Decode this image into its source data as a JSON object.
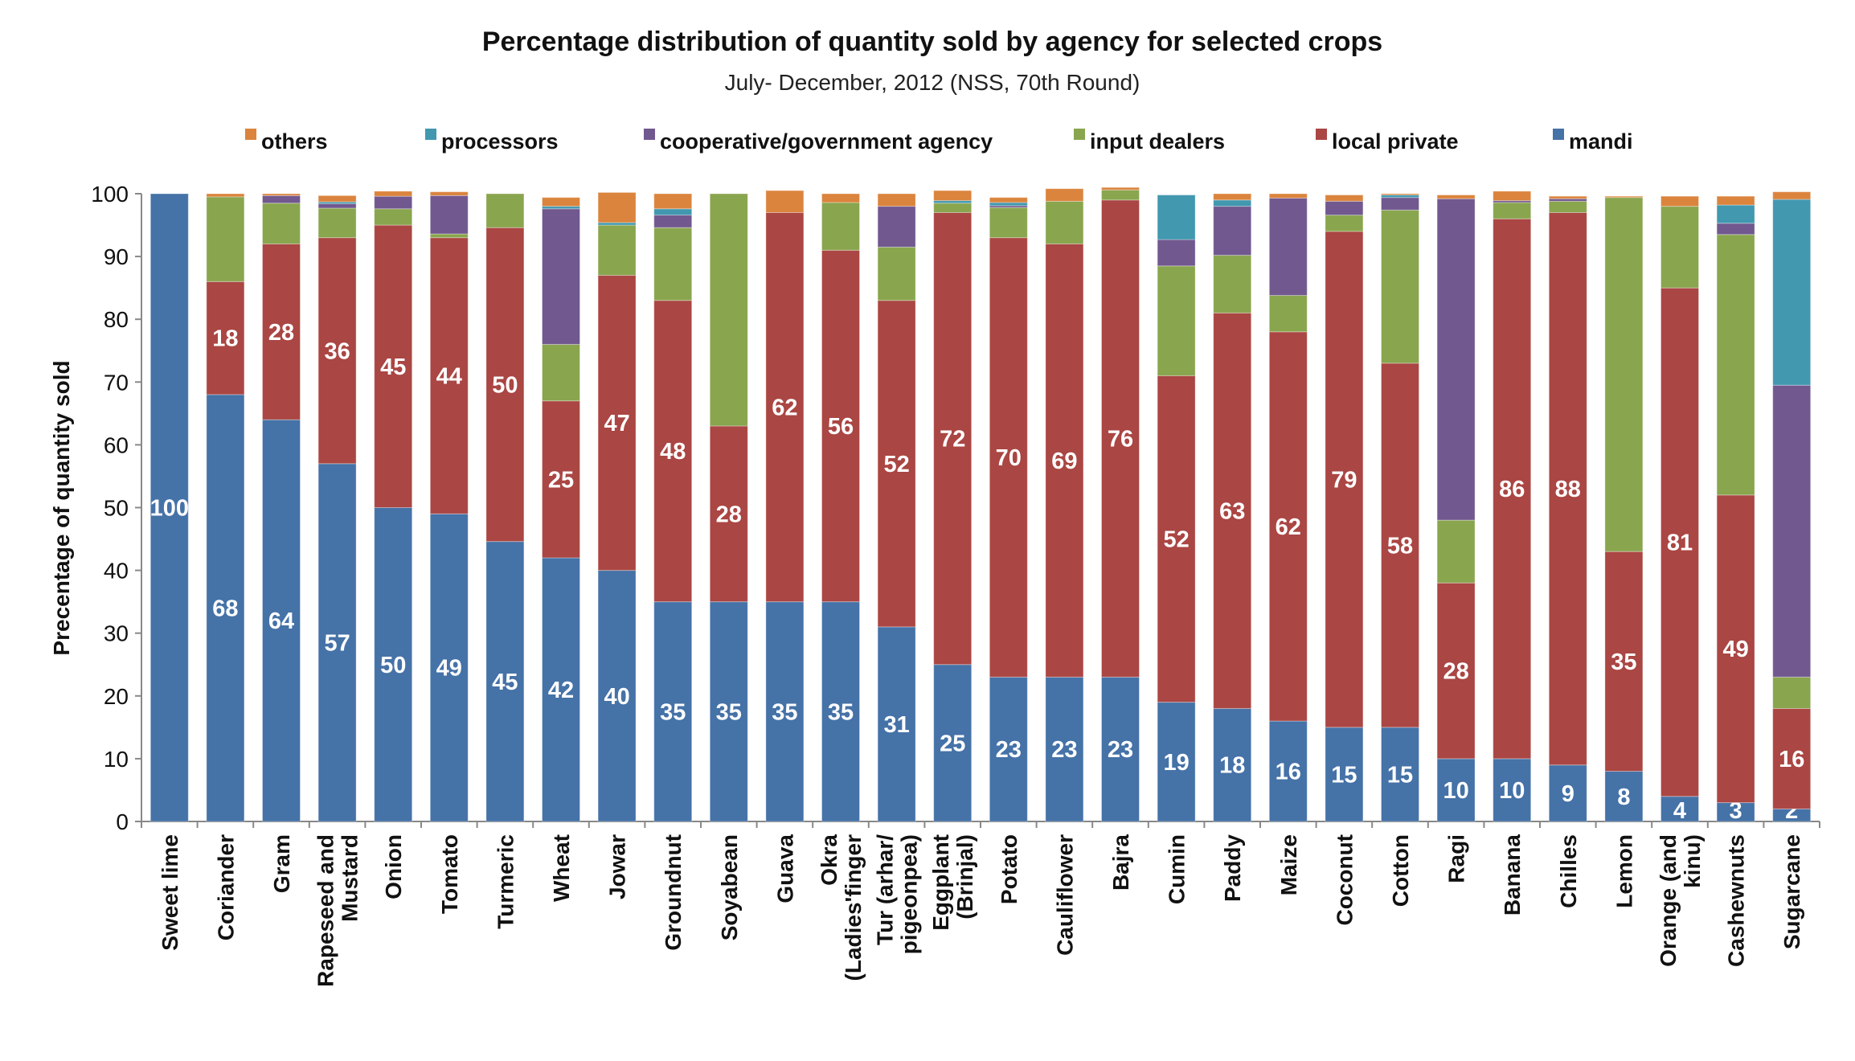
{
  "chart_data": {
    "type": "bar",
    "stacked": true,
    "title": "Percentage distribution of quantity sold by agency for selected crops",
    "subtitle": "July- December, 2012 (NSS, 70th Round)",
    "xlabel": "",
    "ylabel": "Precentage of quantity sold",
    "ylim": [
      0,
      100
    ],
    "yticks": [
      "0",
      "10",
      "20",
      "30",
      "40",
      "50",
      "60",
      "70",
      "80",
      "90",
      "100"
    ],
    "legend_position": "top",
    "categories": [
      "Sweet lime",
      "Coriander",
      "Gram",
      "Rapeseed and Mustard",
      "Onion",
      "Tomato",
      "Turmeric",
      "Wheat",
      "Jowar",
      "Groundnut",
      "Soyabean",
      "Guava",
      "Okra (Ladies'finger",
      "Tur (arhar/ pigeonpea)",
      "Eggplant (Brinjal)",
      "Potato",
      "Cauliflower",
      "Bajra",
      "Cumin",
      "Paddy",
      "Maize",
      "Coconut",
      "Cotton",
      "Ragi",
      "Banana",
      "Chilles",
      "Lemon",
      "Orange (and kinu)",
      "Cashewnuts",
      "Sugarcane"
    ],
    "category_lines": [
      [
        "Sweet lime"
      ],
      [
        "Coriander"
      ],
      [
        "Gram"
      ],
      [
        "Rapeseed and",
        "Mustard"
      ],
      [
        "Onion"
      ],
      [
        "Tomato"
      ],
      [
        "Turmeric"
      ],
      [
        "Wheat"
      ],
      [
        "Jowar"
      ],
      [
        "Groundnut"
      ],
      [
        "Soyabean"
      ],
      [
        "Guava"
      ],
      [
        "Okra",
        "(Ladies'finger"
      ],
      [
        "Tur (arhar/",
        "pigeonpea)"
      ],
      [
        "Eggplant",
        "(Brinjal)"
      ],
      [
        "Potato"
      ],
      [
        "Cauliflower"
      ],
      [
        "Bajra"
      ],
      [
        "Cumin"
      ],
      [
        "Paddy"
      ],
      [
        "Maize"
      ],
      [
        "Coconut"
      ],
      [
        "Cotton"
      ],
      [
        "Ragi"
      ],
      [
        "Banana"
      ],
      [
        "Chilles"
      ],
      [
        "Lemon"
      ],
      [
        "Orange (and",
        "kinu)"
      ],
      [
        "Cashewnuts"
      ],
      [
        "Sugarcane"
      ]
    ],
    "series": [
      {
        "name": "mandi",
        "color": "#4572A7",
        "values": [
          100,
          68,
          64,
          57,
          50,
          49,
          44.6,
          42,
          40,
          35,
          35,
          35,
          35,
          31,
          25,
          23,
          23,
          23,
          19,
          18,
          16,
          15,
          15,
          10,
          10,
          9,
          8,
          4,
          3,
          2
        ],
        "labels": [
          "100",
          "68",
          "64",
          "57",
          "50",
          "49",
          "45",
          "42",
          "40",
          "35",
          "35",
          "35",
          "35",
          "31",
          "25",
          "23",
          "23",
          "23",
          "19",
          "18",
          "16",
          "15",
          "15",
          "10",
          "10",
          "9",
          "8",
          "4",
          "3",
          "2"
        ]
      },
      {
        "name": "local private",
        "color": "#AA4643",
        "values": [
          0,
          18,
          28,
          36,
          45,
          44,
          50,
          25,
          47,
          48,
          28,
          62,
          56,
          52,
          72,
          70,
          69,
          76,
          52,
          63,
          62,
          79,
          58,
          28,
          86,
          88,
          35,
          81,
          49,
          16
        ],
        "labels": [
          "",
          "18",
          "28",
          "36",
          "45",
          "44",
          "50",
          "25",
          "47",
          "48",
          "28",
          "62",
          "56",
          "52",
          "72",
          "70",
          "69",
          "76",
          "52",
          "63",
          "62",
          "79",
          "58",
          "28",
          "86",
          "88",
          "35",
          "81",
          "49",
          "16"
        ]
      },
      {
        "name": "input dealers",
        "color": "#89A54E",
        "values": [
          0,
          13.5,
          6.5,
          4.7,
          2.6,
          0.6,
          5.4,
          9,
          8,
          11.6,
          37,
          0,
          7.6,
          8.5,
          1.5,
          4.8,
          6.8,
          1.6,
          17.5,
          9.2,
          5.8,
          2.6,
          24.4,
          10,
          2.6,
          1.8,
          56.4,
          13,
          41.5,
          5
        ]
      },
      {
        "name": "cooperative/government agency",
        "color": "#71588F",
        "values": [
          0,
          0,
          1.2,
          0.7,
          2,
          6.1,
          0,
          21.6,
          0,
          2,
          0,
          0,
          0,
          6.5,
          0,
          0.3,
          0,
          0,
          4.2,
          7.8,
          15.5,
          2.2,
          2,
          51.2,
          0.3,
          0.4,
          0,
          0,
          1.8,
          46.5
        ]
      },
      {
        "name": "processors",
        "color": "#4198AF",
        "values": [
          0,
          0,
          0,
          0.3,
          0,
          0,
          0,
          0.4,
          0.4,
          1,
          0,
          0,
          0,
          0,
          0.4,
          0.5,
          0,
          0,
          7.1,
          1,
          0,
          0,
          0.4,
          0,
          0,
          0,
          0,
          0,
          2.9,
          29.6
        ]
      },
      {
        "name": "others",
        "color": "#DB843D",
        "values": [
          0,
          0.5,
          0.3,
          1,
          0.8,
          0.6,
          0,
          1.4,
          4.8,
          2.4,
          0,
          3.5,
          1.4,
          2,
          1.6,
          0.8,
          2,
          0.4,
          0,
          1,
          0.7,
          1,
          0.2,
          0.6,
          1.5,
          0.4,
          0.2,
          1.6,
          1.4,
          1.2
        ]
      }
    ],
    "legend_order": [
      "others",
      "processors",
      "cooperative/government agency",
      "input dealers",
      "local private",
      "mandi"
    ],
    "grid": false
  }
}
